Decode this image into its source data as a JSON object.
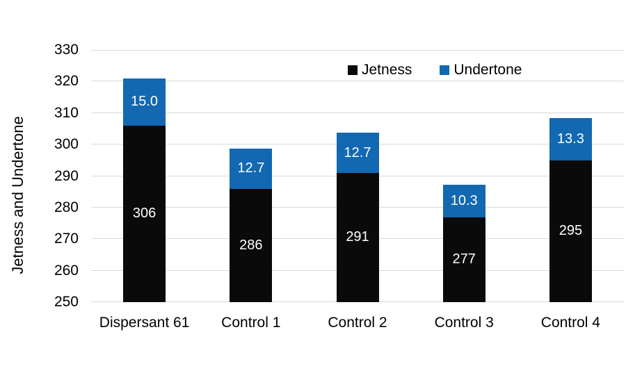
{
  "chart_data": {
    "type": "bar",
    "stacked": true,
    "title": "",
    "xlabel": "",
    "ylabel": "Jetness and Undertone",
    "ylim": [
      250,
      330
    ],
    "yticks": [
      250,
      260,
      270,
      280,
      290,
      300,
      310,
      320,
      330
    ],
    "grid": true,
    "legend_position": "top-center",
    "categories": [
      "Dispersant 61",
      "Control 1",
      "Control 2",
      "Control 3",
      "Control 4"
    ],
    "series": [
      {
        "name": "Jetness",
        "color": "#0a0a0a",
        "values": [
          306,
          286,
          291,
          277,
          295
        ],
        "labels": [
          "306",
          "286",
          "291",
          "277",
          "295"
        ],
        "label_color": "#ffffff"
      },
      {
        "name": "Undertone",
        "color": "#1268b1",
        "values": [
          15.0,
          12.7,
          12.7,
          10.3,
          13.3
        ],
        "labels": [
          "15.0",
          "12.7",
          "12.7",
          "10.3",
          "13.3"
        ],
        "label_color": "#ffffff"
      }
    ],
    "colors": {
      "background": "#ffffff",
      "gridline": "#d9d9d9",
      "axis_text": "#000000"
    }
  }
}
